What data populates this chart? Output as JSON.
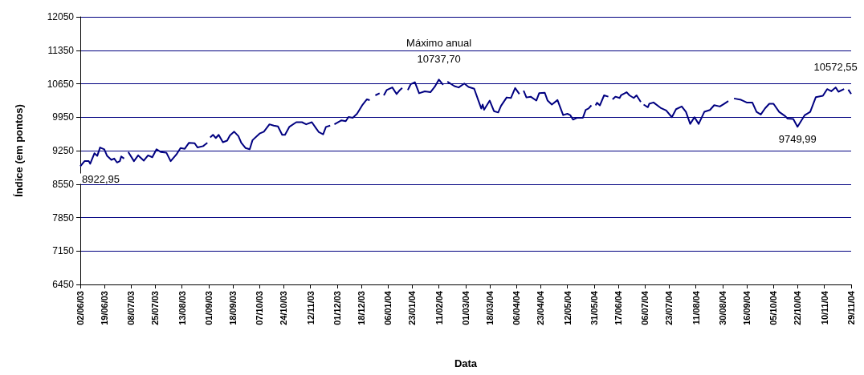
{
  "chart_data": {
    "type": "line",
    "xlabel": "Data",
    "ylabel": "Índice (em pontos)",
    "grid": "y",
    "marker": "none",
    "line_style": "solid",
    "xlim": [
      "2003-06-02",
      "2004-11-29"
    ],
    "xticks": [
      {
        "value": "2003-06-02",
        "label": "02/06/03"
      },
      {
        "value": "2003-06-19",
        "label": "19/06/03"
      },
      {
        "value": "2003-07-08",
        "label": "08/07/03"
      },
      {
        "value": "2003-07-25",
        "label": "25/07/03"
      },
      {
        "value": "2003-08-13",
        "label": "13/08/03"
      },
      {
        "value": "2003-09-01",
        "label": "01/09/03"
      },
      {
        "value": "2003-09-18",
        "label": "18/09/03"
      },
      {
        "value": "2003-10-07",
        "label": "07/10/03"
      },
      {
        "value": "2003-10-24",
        "label": "24/10/03"
      },
      {
        "value": "2003-11-12",
        "label": "12/11/03"
      },
      {
        "value": "2003-12-01",
        "label": "01/12/03"
      },
      {
        "value": "2003-12-18",
        "label": "18/12/03"
      },
      {
        "value": "2004-01-06",
        "label": "06/01/04"
      },
      {
        "value": "2004-01-23",
        "label": "23/01/04"
      },
      {
        "value": "2004-02-11",
        "label": "11/02/04"
      },
      {
        "value": "2004-03-01",
        "label": "01/03/04"
      },
      {
        "value": "2004-03-18",
        "label": "18/03/04"
      },
      {
        "value": "2004-04-06",
        "label": "06/04/04"
      },
      {
        "value": "2004-04-23",
        "label": "23/04/04"
      },
      {
        "value": "2004-05-12",
        "label": "12/05/04"
      },
      {
        "value": "2004-05-31",
        "label": "31/05/04"
      },
      {
        "value": "2004-06-17",
        "label": "17/06/04"
      },
      {
        "value": "2004-07-06",
        "label": "06/07/04"
      },
      {
        "value": "2004-07-23",
        "label": "23/07/04"
      },
      {
        "value": "2004-08-11",
        "label": "11/08/04"
      },
      {
        "value": "2004-08-30",
        "label": "30/08/04"
      },
      {
        "value": "2004-09-16",
        "label": "16/09/04"
      },
      {
        "value": "2004-10-05",
        "label": "05/10/04"
      },
      {
        "value": "2004-10-22",
        "label": "22/10/04"
      },
      {
        "value": "2004-11-10",
        "label": "10/11/04"
      },
      {
        "value": "2004-11-29",
        "label": "29/11/04"
      }
    ],
    "ylim": [
      6450,
      12050
    ],
    "yticks": [
      6450,
      7150,
      7850,
      8550,
      9250,
      9950,
      10650,
      11350,
      12050
    ],
    "annotations": [
      {
        "text": "8922,95",
        "x": "2003-06-02",
        "y": 8922.95
      },
      {
        "text": "Máximo anual",
        "x": "2004-02-11",
        "y": 10737.7
      },
      {
        "text": "10737,70",
        "x": "2004-02-11",
        "y": 10737.7
      },
      {
        "text": "9749,99",
        "x": "2004-10-22",
        "y": 9749.99
      },
      {
        "text": "10572,55",
        "x": "2004-11-18",
        "y": 10572.55
      }
    ],
    "series": [
      {
        "color": "#000080",
        "x": [
          "2003-06-02",
          "2003-06-05",
          "2003-06-08",
          "2003-06-09",
          "2003-06-12",
          "2003-06-14",
          "2003-06-16",
          "2003-06-19",
          "2003-06-21",
          "2003-06-24",
          "2003-06-26",
          "2003-06-28",
          "2003-06-30",
          "2003-07-01",
          "2003-07-03",
          "2003-07-05",
          "2003-07-06",
          "2003-07-10",
          "2003-07-13",
          "2003-07-17",
          "2003-07-20",
          "2003-07-23",
          "2003-07-26",
          "2003-07-29",
          "2003-08-02",
          "2003-08-05",
          "2003-08-09",
          "2003-08-12",
          "2003-08-15",
          "2003-08-18",
          "2003-08-22",
          "2003-08-24",
          "2003-08-28",
          "2003-08-31",
          "2003-09-01",
          "2003-09-02",
          "2003-09-04",
          "2003-09-06",
          "2003-09-08",
          "2003-09-11",
          "2003-09-14",
          "2003-09-16",
          "2003-09-19",
          "2003-09-22",
          "2003-09-24",
          "2003-09-27",
          "2003-09-30",
          "2003-10-02",
          "2003-10-07",
          "2003-10-10",
          "2003-10-14",
          "2003-10-17",
          "2003-10-20",
          "2003-10-23",
          "2003-10-25",
          "2003-10-28",
          "2003-11-02",
          "2003-11-06",
          "2003-11-09",
          "2003-11-13",
          "2003-11-16",
          "2003-11-18",
          "2003-11-21",
          "2003-11-23",
          "2003-11-26",
          "2003-11-28",
          "2003-11-29",
          "2003-12-04",
          "2003-12-07",
          "2003-12-09",
          "2003-12-12",
          "2003-12-15",
          "2003-12-19",
          "2003-12-22",
          "2003-12-24",
          "2003-12-26",
          "2003-12-28",
          "2003-12-31",
          "2004-01-01",
          "2004-01-03",
          "2004-01-05",
          "2004-01-09",
          "2004-01-12",
          "2004-01-14",
          "2004-01-16",
          "2004-01-18",
          "2004-01-20",
          "2004-01-22",
          "2004-01-25",
          "2004-01-28",
          "2004-02-01",
          "2004-02-05",
          "2004-02-08",
          "2004-02-11",
          "2004-02-14",
          "2004-02-15",
          "2004-02-17",
          "2004-02-22",
          "2004-02-25",
          "2004-02-29",
          "2004-03-03",
          "2004-03-07",
          "2004-03-10",
          "2004-03-12",
          "2004-03-13",
          "2004-03-14",
          "2004-03-18",
          "2004-03-21",
          "2004-03-24",
          "2004-03-26",
          "2004-03-30",
          "2004-04-02",
          "2004-04-05",
          "2004-04-08",
          "2004-04-09",
          "2004-04-11",
          "2004-04-13",
          "2004-04-16",
          "2004-04-20",
          "2004-04-22",
          "2004-04-26",
          "2004-04-28",
          "2004-05-01",
          "2004-05-05",
          "2004-05-09",
          "2004-05-12",
          "2004-05-14",
          "2004-05-16",
          "2004-05-19",
          "2004-05-23",
          "2004-05-25",
          "2004-05-27",
          "2004-05-29",
          "2004-05-30",
          "2004-06-01",
          "2004-06-02",
          "2004-06-04",
          "2004-06-07",
          "2004-06-10",
          "2004-06-11",
          "2004-06-13",
          "2004-06-15",
          "2004-06-18",
          "2004-06-19",
          "2004-06-23",
          "2004-06-25",
          "2004-06-28",
          "2004-06-30",
          "2004-07-03",
          "2004-07-04",
          "2004-07-05",
          "2004-07-08",
          "2004-07-09",
          "2004-07-12",
          "2004-07-17",
          "2004-07-21",
          "2004-07-25",
          "2004-07-28",
          "2004-08-01",
          "2004-08-04",
          "2004-08-07",
          "2004-08-10",
          "2004-08-13",
          "2004-08-17",
          "2004-08-21",
          "2004-08-24",
          "2004-08-28",
          "2004-08-31",
          "2004-09-03",
          "2004-09-05",
          "2004-09-07",
          "2004-09-12",
          "2004-09-16",
          "2004-09-20",
          "2004-09-23",
          "2004-09-26",
          "2004-09-29",
          "2004-10-02",
          "2004-10-05",
          "2004-10-09",
          "2004-10-13",
          "2004-10-15",
          "2004-10-19",
          "2004-10-22",
          "2004-10-27",
          "2004-10-31",
          "2004-11-04",
          "2004-11-09",
          "2004-11-12",
          "2004-11-15",
          "2004-11-18",
          "2004-11-20",
          "2004-11-24",
          "2004-11-25",
          "2004-11-27",
          "2004-11-29"
        ],
        "values": [
          8922.95,
          9030,
          9030,
          8975,
          9195,
          9140,
          9316,
          9278,
          9140,
          9057,
          9085,
          9002,
          9030,
          9129,
          9085,
          null,
          9222,
          9030,
          9151,
          9041,
          9151,
          9112,
          9278,
          9222,
          9206,
          9030,
          9167,
          9305,
          9289,
          9415,
          9404,
          9316,
          9344,
          9415,
          null,
          9526,
          9581,
          9514,
          9581,
          9426,
          9459,
          9570,
          9647,
          9553,
          9415,
          9305,
          9278,
          9470,
          9608,
          9647,
          9801,
          9774,
          9757,
          9581,
          9581,
          9746,
          9845,
          9845,
          9801,
          9845,
          9718,
          9636,
          9592,
          9746,
          9774,
          null,
          9801,
          9884,
          9867,
          9955,
          9939,
          10021,
          10214,
          10324,
          10307,
          null,
          10407,
          10451,
          null,
          10407,
          10517,
          10572,
          10435,
          10506,
          10561,
          null,
          10517,
          10638,
          10682,
          10451,
          10490,
          10473,
          10583,
          10737.7,
          10628,
          null,
          10694,
          10600,
          10572,
          10655,
          10583,
          10545,
          10297,
          10131,
          10214,
          10104,
          10297,
          10076,
          10049,
          10186,
          10363,
          10352,
          10561,
          10435,
          null,
          10506,
          10363,
          10379,
          10297,
          10451,
          10462,
          10297,
          10214,
          10308,
          9994,
          10021,
          9994,
          9900,
          9939,
          9939,
          10104,
          10131,
          10197,
          null,
          10197,
          10252,
          10197,
          10407,
          10379,
          null,
          10324,
          10379,
          10352,
          10407,
          10473,
          10407,
          10352,
          10407,
          10269,
          null,
          10214,
          10159,
          10230,
          10258,
          10146,
          10090,
          9950,
          10118,
          10174,
          10062,
          9810,
          9950,
          9810,
          10062,
          10101,
          10202,
          10174,
          10230,
          10286,
          null,
          10342,
          10314,
          10258,
          10258,
          10062,
          10006,
          10135,
          10230,
          10230,
          10062,
          9978,
          9922,
          9911,
          9749.99,
          9989,
          10062,
          10370,
          10398,
          10538,
          10493,
          10572.55,
          10482,
          10538,
          null,
          10527,
          10437
        ]
      }
    ]
  }
}
